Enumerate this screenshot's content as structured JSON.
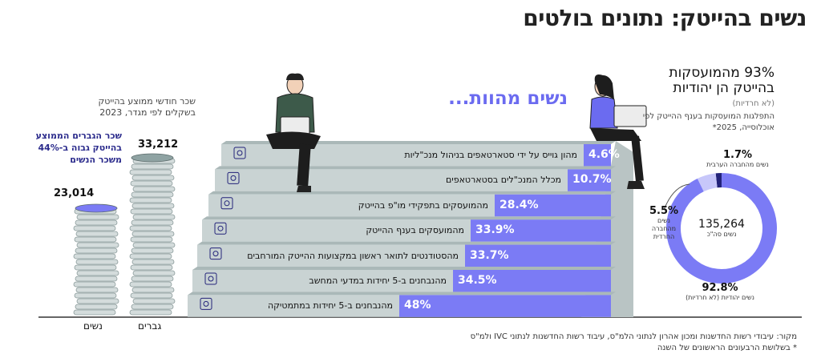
{
  "title": "נשים בהייטק: נתונים בולטים",
  "headline": "נשים מהוות...",
  "chart_data": [
    {
      "type": "bar",
      "orientation": "horizontal",
      "categories": [
        "מהון גוייס על ידי סטארטאפים בניהול מנכ\"ליות",
        "מכלל המנכ\"לים בסטארטאפים",
        "מהמועסקים בתפקידי מו\"פ בהייטק",
        "מהמועסקים בענף ההייטק",
        "מהסטודנטים לתואר ראשון במקצועות ההייטק המורחבים",
        "מהנבחנים ב-5 יחידות במדעי המחשב",
        "מהנבחנים ב-5 יחידות במתמטיקה"
      ],
      "values": [
        4.6,
        10.7,
        28.4,
        33.9,
        33.7,
        34.5,
        48
      ],
      "labels": [
        "4.6%",
        "10.7%",
        "28.4%",
        "33.9%",
        "33.7%",
        "34.5%",
        "48%"
      ],
      "icons": [
        "seedling-icon",
        "lightbulb-icon",
        "magnifier-icon",
        "gear-icon",
        "graduation-cap-icon",
        "monitor-icon",
        "calculator-icon"
      ]
    },
    {
      "type": "bar",
      "caption": "שכר חודשי ממוצע בהייטק בשקלים לפי מגדר, 2023",
      "categories": [
        "נשים",
        "גברים"
      ],
      "values": [
        23014,
        33212
      ],
      "labels": [
        "23,014",
        "33,212"
      ],
      "annotation": "שכר הגברים הממוצע בהייטק גבוה ב-44% משכר הנשים"
    },
    {
      "type": "pie",
      "title": "93% מהמועסקות בהייטק הן יהודיות",
      "subtitle": "(לא חרדיות)",
      "description": "התפלגות המועסקות בענף ההייטק לפי אוכלוסייה, 2025*",
      "center_value": "135,264",
      "center_label": "נשים סה\"כ",
      "slices": [
        {
          "label": "נשים יהודיות (לא חרדיות)",
          "value": 92.8,
          "display": "92.8%",
          "color": "#7b7bf5"
        },
        {
          "label": "נשים מהחברה החרדית",
          "value": 5.5,
          "display": "5.5%",
          "color": "#c7c7fa"
        },
        {
          "label": "נשים מהחברה הערבית",
          "value": 1.7,
          "display": "1.7%",
          "color": "#23237a"
        }
      ]
    }
  ],
  "footer": {
    "source": "מקור: עיבודי רשות החדשנות ומכון אהרון לנתוני הלמ\"ס, עיבוד רשות החדשנות לנתוני IVC ולמ\"ס",
    "note": "* בשלושת הרבעונים הראשונים של השנה"
  },
  "colors": {
    "accent": "#6b6bf0",
    "step_face": "#c9d3d3",
    "step_top": "#aab8b8",
    "bar": "#7b7bf5",
    "navy": "#23237a"
  }
}
